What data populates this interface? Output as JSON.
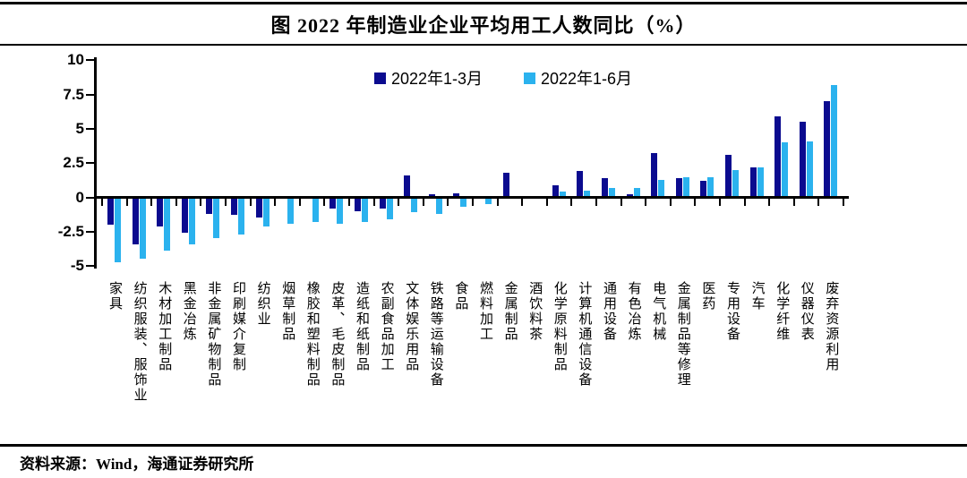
{
  "figure": {
    "title": "图 2022 年制造业企业平均用工人数同比（%）",
    "source": "资料来源：Wind，海通证券研究所"
  },
  "chart_data": {
    "type": "bar",
    "title": "2022年制造业企业平均用工人数同比（%）",
    "xlabel": "",
    "ylabel": "",
    "ylim": [
      -5,
      10
    ],
    "yticks": [
      10,
      7.5,
      5,
      2.5,
      0,
      -2.5,
      -5
    ],
    "grid": false,
    "legend_position": "top-center",
    "axis_color": "#000000",
    "categories": [
      "家具",
      "纺织服装、服饰业",
      "木材加工制品",
      "黑金冶炼",
      "非金属矿物制品",
      "印刷媒介复制",
      "纺织业",
      "烟草制品",
      "橡胶和塑料制品",
      "皮革、毛皮制品",
      "造纸和纸制品",
      "农副食品加工",
      "文体娱乐用品",
      "铁路等运输设备",
      "食品",
      "燃料加工",
      "金属制品",
      "酒饮料茶",
      "化学原料制品",
      "计算机通信设备",
      "通用设备",
      "有色冶炼",
      "电气机械",
      "金属制品等修理",
      "医药",
      "专用设备",
      "汽车",
      "化学纤维",
      "仪器仪表",
      "废弃资源利用"
    ],
    "series": [
      {
        "name": "2022年1-3月",
        "color": "#0B0B8F",
        "values": [
          -2.0,
          -3.4,
          -2.1,
          -2.6,
          -1.2,
          -1.3,
          -1.5,
          0,
          0,
          -0.8,
          -1.0,
          -0.8,
          1.6,
          0.2,
          0.3,
          0.1,
          1.8,
          0.1,
          0.9,
          1.9,
          1.4,
          0.2,
          3.2,
          1.4,
          1.2,
          3.1,
          2.2,
          5.9,
          5.5,
          7.0
        ]
      },
      {
        "name": "2022年1-6月",
        "color": "#2BB2EE",
        "values": [
          -4.7,
          -4.5,
          -3.9,
          -3.4,
          -3.0,
          -2.7,
          -2.1,
          -1.9,
          -1.8,
          -1.9,
          -1.8,
          -1.6,
          -1.1,
          -1.2,
          -0.7,
          -0.5,
          0,
          0,
          0.4,
          0.5,
          0.7,
          0.7,
          1.3,
          1.5,
          1.5,
          2.0,
          2.2,
          4.0,
          4.1,
          8.2
        ]
      }
    ]
  }
}
